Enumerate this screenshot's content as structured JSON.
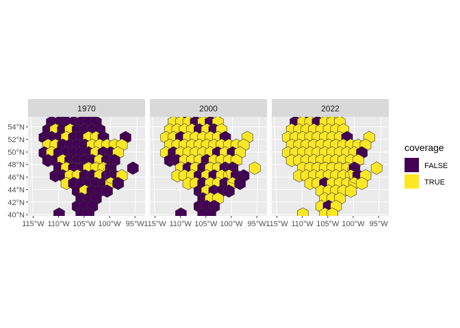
{
  "chart_data": {
    "type": "hexbin-map",
    "legend": {
      "title": "coverage",
      "position": "right",
      "entries": [
        {
          "label": "FALSE",
          "color": "#440154"
        },
        {
          "label": "TRUE",
          "color": "#FDE725"
        }
      ]
    },
    "colors": {
      "panel_bg": "#EBEBEB",
      "grid": "#FFFFFF",
      "strip_bg": "#D9D9D9",
      "hex_border": "#333333"
    },
    "x_axis": {
      "ticks": [
        "115°W",
        "110°W",
        "105°W",
        "100°W",
        "95°W"
      ],
      "values": [
        -115,
        -110,
        -105,
        -100,
        -95
      ],
      "range": [
        -116,
        -93
      ]
    },
    "y_axis": {
      "ticks": [
        "40°N",
        "42°N",
        "44°N",
        "46°N",
        "48°N",
        "50°N",
        "52°N",
        "54°N"
      ],
      "values": [
        40,
        42,
        44,
        46,
        48,
        50,
        52,
        54
      ],
      "range": [
        39.8,
        55.6
      ]
    },
    "hex_grid": {
      "lon0": -112.8,
      "lon_step": 1.45,
      "lat0": 40.1,
      "lat_step": 1.22,
      "codes": "F = FALSE, T = TRUE, . = empty; rows listed from north (top) to south (bottom); odd rows are offset by half a column"
    },
    "panels": [
      {
        "title": "1970",
        "rows": [
          "..F..FF.",
          ".FFFFFFF...",
          "FTFTFFFF",
          "FFFTFFTTF..F",
          "TTFFFFTTTTT",
          "FTFFFFFTFFT.",
          "FFTFFFFTFF..",
          "..FTFFTTTF..F",
          ".FFTTFFTFFT",
          "...TFFFFFTF..",
          "....FTFFF",
          ".....FFF",
          "....FFF",
          "..F..FF"
        ]
      },
      {
        "title": "2000",
        "rows": [
          "..F..TT.",
          ".TTTFTFT...",
          "TTTTFTFT",
          "TTFTTTTTF..T",
          "TTTTTTTTTTT",
          "TFTTTTTFTFT.",
          "FFTTTFTTTT..",
          "..TFTFTTFF..T",
          ".TTTFTFTTFF",
          "...TTFTTFTF..",
          "....FTFFF",
          ".....FTT",
          "....FFF",
          "..F..FF"
        ]
      },
      {
        "title": "2022",
        "rows": [
          "..F..TT.",
          ".FTTFTTT...",
          "TTTTTTTT",
          "TTTTTTTTF..T",
          "TTTTTTTTTTT",
          "TTTTTTTTTTF.",
          "TTTTTTTTTT..",
          "..TTTTTTTF..T",
          ".TTTTTTTTFT",
          "...TTFTTTTT..",
          "....TTTTT",
          ".....TTT",
          "....TFT",
          "..T..TT"
        ]
      }
    ]
  }
}
